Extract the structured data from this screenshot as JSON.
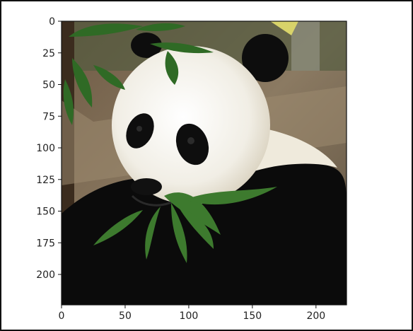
{
  "image": {
    "subject": "",
    "colors": {
      "fur_white": "#f2efe6",
      "fur_black": "#0b0b0b",
      "leaf_green": "#3d7a2e",
      "background_tree": "#5a4a36",
      "background_ground": "#8c7b63"
    }
  },
  "axes": {
    "x_ticks": [
      "0",
      "50",
      "100",
      "150",
      "200"
    ],
    "y_ticks": [
      "0",
      "25",
      "50",
      "75",
      "100",
      "125",
      "150",
      "175",
      "200"
    ],
    "x_tick_values": [
      0,
      50,
      100,
      150,
      200
    ],
    "y_tick_values": [
      0,
      25,
      50,
      75,
      100,
      125,
      150,
      175,
      200
    ],
    "xlim": [
      0,
      224
    ],
    "ylim": [
      224,
      0
    ]
  }
}
